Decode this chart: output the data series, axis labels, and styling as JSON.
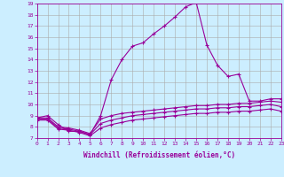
{
  "xlabel": "Windchill (Refroidissement éolien,°C)",
  "x_ticks": [
    0,
    1,
    2,
    3,
    4,
    5,
    6,
    7,
    8,
    9,
    10,
    11,
    12,
    13,
    14,
    15,
    16,
    17,
    18,
    19,
    20,
    21,
    22,
    23
  ],
  "ylim": [
    7,
    19
  ],
  "xlim": [
    0,
    23
  ],
  "y_ticks": [
    7,
    8,
    9,
    10,
    11,
    12,
    13,
    14,
    15,
    16,
    17,
    18,
    19
  ],
  "background_color": "#cceeff",
  "line_color": "#990099",
  "grid_color": "#aaaaaa",
  "line1": [
    8.8,
    9.0,
    8.2,
    7.6,
    7.6,
    7.3,
    9.0,
    12.2,
    14.0,
    15.2,
    15.5,
    16.3,
    17.0,
    17.8,
    18.7,
    19.1,
    15.3,
    13.5,
    12.5,
    12.7,
    10.3,
    10.3,
    10.5,
    10.5
  ],
  "line2": [
    8.8,
    8.8,
    8.0,
    7.9,
    7.7,
    7.4,
    8.7,
    9.0,
    9.2,
    9.3,
    9.4,
    9.5,
    9.6,
    9.7,
    9.8,
    9.9,
    9.9,
    10.0,
    10.0,
    10.1,
    10.1,
    10.2,
    10.3,
    10.2
  ],
  "line3": [
    8.7,
    8.7,
    7.9,
    7.8,
    7.6,
    7.3,
    8.3,
    8.6,
    8.8,
    9.0,
    9.1,
    9.2,
    9.3,
    9.4,
    9.5,
    9.6,
    9.6,
    9.7,
    9.7,
    9.8,
    9.8,
    9.9,
    10.0,
    9.8
  ],
  "line4": [
    8.6,
    8.6,
    7.8,
    7.7,
    7.5,
    7.2,
    7.9,
    8.2,
    8.4,
    8.6,
    8.7,
    8.8,
    8.9,
    9.0,
    9.1,
    9.2,
    9.2,
    9.3,
    9.3,
    9.4,
    9.4,
    9.5,
    9.6,
    9.4
  ]
}
